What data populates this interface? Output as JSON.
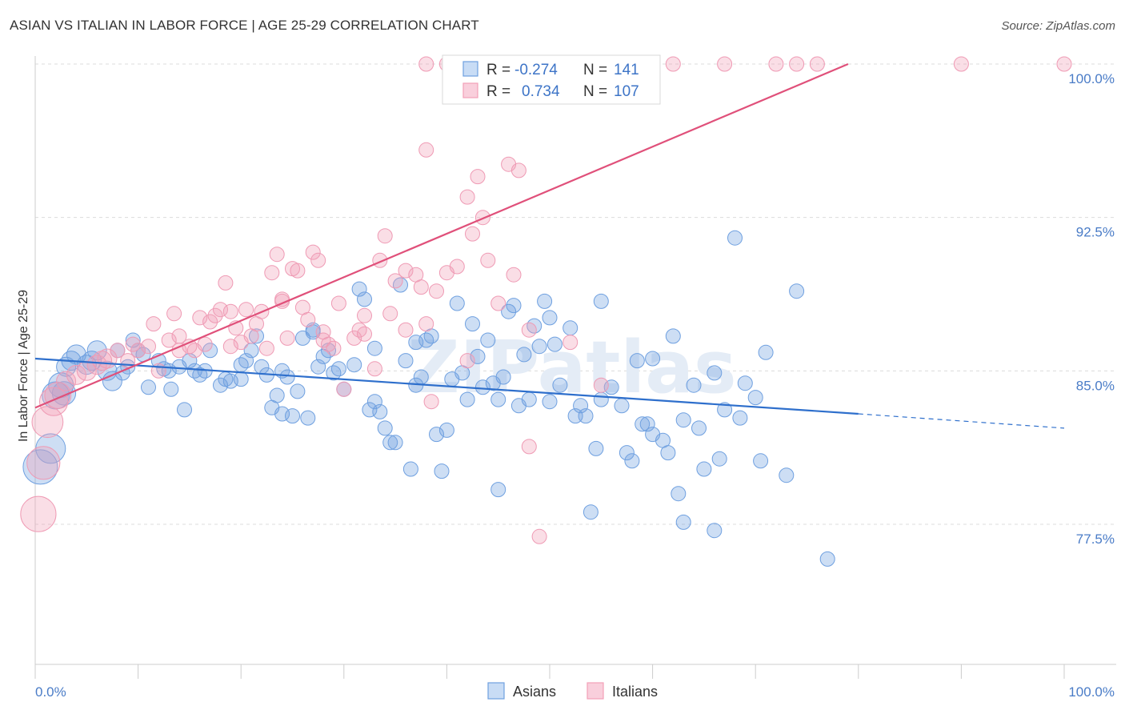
{
  "title": "ASIAN VS ITALIAN IN LABOR FORCE | AGE 25-29 CORRELATION CHART",
  "source": "Source: ZipAtlas.com",
  "watermark": "ZIPatlas",
  "legend": {
    "rows": [
      {
        "r_label": "R =",
        "r_value": "-0.274",
        "n_label": "N =",
        "n_value": "141"
      },
      {
        "r_label": "R =",
        "r_value": "0.734",
        "n_label": "N =",
        "n_value": "107"
      }
    ]
  },
  "chart_data": {
    "type": "scatter",
    "title": "ASIAN VS ITALIAN IN LABOR FORCE | AGE 25-29 CORRELATION CHART",
    "xlabel": "",
    "ylabel": "In Labor Force | Age 25-29",
    "xlim": [
      0,
      100
    ],
    "ylim": [
      70.0,
      101.0
    ],
    "x_tick_labels": [
      "0.0%",
      "100.0%"
    ],
    "y_ticks": [
      77.5,
      85.0,
      92.5,
      100.0
    ],
    "y_tick_labels": [
      "77.5%",
      "85.0%",
      "92.5%",
      "100.0%"
    ],
    "grid": true,
    "legend_position": "top-center",
    "series": [
      {
        "name": "Asians",
        "color": "#6fa0e0",
        "line_color": "#2e6fcc",
        "r": -0.274,
        "n": 141,
        "trend": {
          "x0": 0,
          "y0": 85.6,
          "x1": 80,
          "y1": 82.9,
          "dash_to_x": 100,
          "dash_to_y": 82.2
        },
        "points": [
          [
            0.5,
            80.3
          ],
          [
            1.5,
            81.2
          ],
          [
            2,
            83.8
          ],
          [
            2.5,
            84.3
          ],
          [
            3,
            85.2
          ],
          [
            3.5,
            85.5
          ],
          [
            4,
            85.8
          ],
          [
            5,
            85.3
          ],
          [
            6,
            86.0
          ],
          [
            7,
            85.0
          ],
          [
            7.5,
            84.5
          ],
          [
            8,
            86.0
          ],
          [
            9,
            85.2
          ],
          [
            9.5,
            86.5
          ],
          [
            10,
            86.0
          ],
          [
            11,
            84.2
          ],
          [
            12,
            85.5
          ],
          [
            13,
            85.0
          ],
          [
            13.2,
            84.1
          ],
          [
            14,
            85.2
          ],
          [
            14.5,
            83.1
          ],
          [
            15,
            85.5
          ],
          [
            15.5,
            85.0
          ],
          [
            16,
            84.8
          ],
          [
            17,
            86.0
          ],
          [
            18,
            84.3
          ],
          [
            18.5,
            84.6
          ],
          [
            19,
            84.5
          ],
          [
            20,
            85.3
          ],
          [
            20.5,
            85.5
          ],
          [
            21,
            86.0
          ],
          [
            21.5,
            86.7
          ],
          [
            22,
            85.2
          ],
          [
            22.5,
            84.8
          ],
          [
            23,
            83.2
          ],
          [
            23.5,
            83.8
          ],
          [
            24,
            82.9
          ],
          [
            24.5,
            84.7
          ],
          [
            25,
            82.8
          ],
          [
            25.5,
            84.0
          ],
          [
            26,
            86.6
          ],
          [
            26.5,
            82.7
          ],
          [
            27,
            87.0
          ],
          [
            27.5,
            85.2
          ],
          [
            28,
            85.7
          ],
          [
            28.5,
            86.0
          ],
          [
            29,
            84.9
          ],
          [
            29.5,
            85.1
          ],
          [
            30,
            84.1
          ],
          [
            31,
            85.3
          ],
          [
            31.5,
            89.0
          ],
          [
            32,
            88.5
          ],
          [
            32.5,
            83.1
          ],
          [
            33,
            83.5
          ],
          [
            33.5,
            83.0
          ],
          [
            34,
            82.2
          ],
          [
            34.5,
            81.5
          ],
          [
            35,
            81.5
          ],
          [
            35.5,
            89.2
          ],
          [
            36,
            85.5
          ],
          [
            36.5,
            80.2
          ],
          [
            37,
            84.3
          ],
          [
            37.5,
            84.7
          ],
          [
            38,
            86.5
          ],
          [
            38.5,
            86.7
          ],
          [
            39,
            81.9
          ],
          [
            39.5,
            80.1
          ],
          [
            40,
            82.1
          ],
          [
            40.5,
            84.6
          ],
          [
            41,
            88.3
          ],
          [
            41.5,
            84.9
          ],
          [
            42,
            83.6
          ],
          [
            42.5,
            87.3
          ],
          [
            43,
            85.7
          ],
          [
            43.5,
            84.2
          ],
          [
            44,
            86.5
          ],
          [
            44.5,
            84.4
          ],
          [
            45,
            79.2
          ],
          [
            45.5,
            84.7
          ],
          [
            46,
            87.9
          ],
          [
            46.5,
            88.2
          ],
          [
            47,
            83.3
          ],
          [
            47.5,
            85.8
          ],
          [
            48,
            83.6
          ],
          [
            48.5,
            87.2
          ],
          [
            49,
            86.2
          ],
          [
            49.5,
            88.4
          ],
          [
            50,
            83.5
          ],
          [
            50.5,
            86.3
          ],
          [
            51,
            84.3
          ],
          [
            52,
            87.1
          ],
          [
            52.5,
            82.8
          ],
          [
            53,
            83.3
          ],
          [
            53.5,
            82.8
          ],
          [
            54,
            78.1
          ],
          [
            54.5,
            81.2
          ],
          [
            55,
            88.4
          ],
          [
            56,
            84.2
          ],
          [
            57,
            83.3
          ],
          [
            57.5,
            81.0
          ],
          [
            58,
            80.6
          ],
          [
            58.5,
            85.5
          ],
          [
            59,
            82.4
          ],
          [
            59.5,
            82.4
          ],
          [
            60,
            81.9
          ],
          [
            61,
            81.6
          ],
          [
            61.5,
            81.0
          ],
          [
            62,
            86.7
          ],
          [
            62.5,
            79.0
          ],
          [
            63,
            77.6
          ],
          [
            64,
            84.3
          ],
          [
            64.5,
            82.2
          ],
          [
            65,
            80.2
          ],
          [
            66,
            77.2
          ],
          [
            66.5,
            80.7
          ],
          [
            67,
            83.1
          ],
          [
            68,
            91.5
          ],
          [
            68.5,
            82.7
          ],
          [
            69,
            84.4
          ],
          [
            70,
            83.7
          ],
          [
            70.5,
            80.6
          ],
          [
            71,
            85.9
          ],
          [
            73,
            79.9
          ],
          [
            74,
            88.9
          ],
          [
            77,
            75.8
          ],
          [
            8.5,
            84.9
          ],
          [
            10.5,
            85.8
          ],
          [
            12.5,
            85.1
          ],
          [
            16.5,
            85.0
          ],
          [
            20,
            84.6
          ],
          [
            24,
            85.0
          ],
          [
            27,
            86.9
          ],
          [
            33,
            86.1
          ],
          [
            37,
            86.4
          ],
          [
            45,
            83.6
          ],
          [
            50,
            87.6
          ],
          [
            55,
            83.6
          ],
          [
            60,
            85.6
          ],
          [
            63,
            82.6
          ],
          [
            66,
            84.9
          ],
          [
            5.5,
            85.5
          ],
          [
            2.8,
            83.9
          ]
        ]
      },
      {
        "name": "Italians",
        "color": "#f2a0b8",
        "line_color": "#e0507a",
        "r": 0.734,
        "n": 107,
        "trend": {
          "x0": 0,
          "y0": 83.2,
          "x1": 79,
          "y1": 100.0
        },
        "points": [
          [
            0.3,
            78.0
          ],
          [
            0.8,
            80.5
          ],
          [
            1.2,
            82.5
          ],
          [
            1.8,
            83.5
          ],
          [
            2.2,
            83.8
          ],
          [
            3,
            84.5
          ],
          [
            4,
            84.8
          ],
          [
            5,
            85.0
          ],
          [
            6,
            85.3
          ],
          [
            7,
            85.6
          ],
          [
            8,
            86.0
          ],
          [
            9,
            85.5
          ],
          [
            10,
            86.0
          ],
          [
            11,
            86.2
          ],
          [
            11.5,
            87.3
          ],
          [
            12,
            85.0
          ],
          [
            13,
            86.5
          ],
          [
            13.5,
            87.8
          ],
          [
            14,
            86.7
          ],
          [
            15,
            86.2
          ],
          [
            15.5,
            86.0
          ],
          [
            16,
            87.6
          ],
          [
            16.5,
            86.3
          ],
          [
            17,
            87.4
          ],
          [
            17.5,
            87.7
          ],
          [
            18,
            88.0
          ],
          [
            18.5,
            89.3
          ],
          [
            19,
            87.9
          ],
          [
            19.5,
            87.1
          ],
          [
            20,
            86.4
          ],
          [
            20.5,
            88.0
          ],
          [
            21,
            86.7
          ],
          [
            21.5,
            87.3
          ],
          [
            22,
            87.9
          ],
          [
            22.5,
            86.1
          ],
          [
            23,
            89.8
          ],
          [
            23.5,
            90.7
          ],
          [
            24,
            88.4
          ],
          [
            24.5,
            86.6
          ],
          [
            25,
            90.0
          ],
          [
            25.5,
            89.9
          ],
          [
            26,
            88.1
          ],
          [
            26.5,
            87.5
          ],
          [
            27,
            90.8
          ],
          [
            27.5,
            90.4
          ],
          [
            28,
            86.5
          ],
          [
            28.5,
            86.3
          ],
          [
            29,
            86.1
          ],
          [
            29.5,
            88.3
          ],
          [
            30,
            84.1
          ],
          [
            31,
            86.6
          ],
          [
            31.5,
            87.0
          ],
          [
            32,
            87.7
          ],
          [
            33,
            85.1
          ],
          [
            33.5,
            90.4
          ],
          [
            34,
            91.6
          ],
          [
            34.5,
            87.8
          ],
          [
            35,
            89.4
          ],
          [
            36,
            89.9
          ],
          [
            37,
            89.7
          ],
          [
            37.5,
            89.1
          ],
          [
            38,
            87.3
          ],
          [
            38.5,
            83.5
          ],
          [
            39,
            88.9
          ],
          [
            40,
            89.8
          ],
          [
            41,
            90.1
          ],
          [
            42,
            93.5
          ],
          [
            42.5,
            91.7
          ],
          [
            43,
            94.5
          ],
          [
            43.5,
            92.5
          ],
          [
            44,
            90.4
          ],
          [
            45,
            88.3
          ],
          [
            46,
            95.1
          ],
          [
            46.5,
            89.7
          ],
          [
            47,
            94.8
          ],
          [
            48,
            81.3
          ],
          [
            49,
            76.9
          ],
          [
            38,
            95.8
          ],
          [
            6.5,
            85.5
          ],
          [
            9.5,
            86.3
          ],
          [
            14,
            86.0
          ],
          [
            19,
            86.2
          ],
          [
            24,
            88.5
          ],
          [
            28,
            86.9
          ],
          [
            32,
            86.8
          ],
          [
            36,
            87.0
          ],
          [
            42,
            85.5
          ],
          [
            48,
            87.0
          ],
          [
            52,
            86.4
          ],
          [
            55,
            84.3
          ],
          [
            38,
            100.0
          ],
          [
            40,
            100.0
          ],
          [
            44,
            100.0
          ],
          [
            46,
            100.0
          ],
          [
            48,
            100.0
          ],
          [
            52,
            100.0
          ],
          [
            54,
            100.0
          ],
          [
            56,
            100.0
          ],
          [
            58,
            100.0
          ],
          [
            60,
            100.0
          ],
          [
            62,
            100.0
          ],
          [
            67,
            100.0
          ],
          [
            72,
            100.0
          ],
          [
            74,
            100.0
          ],
          [
            76,
            100.0
          ],
          [
            90,
            100.0
          ],
          [
            100,
            100.0
          ]
        ]
      }
    ]
  },
  "bottom_legend": [
    {
      "label": "Asians",
      "color": "#6fa0e0"
    },
    {
      "label": "Italians",
      "color": "#f2a0b8"
    }
  ]
}
